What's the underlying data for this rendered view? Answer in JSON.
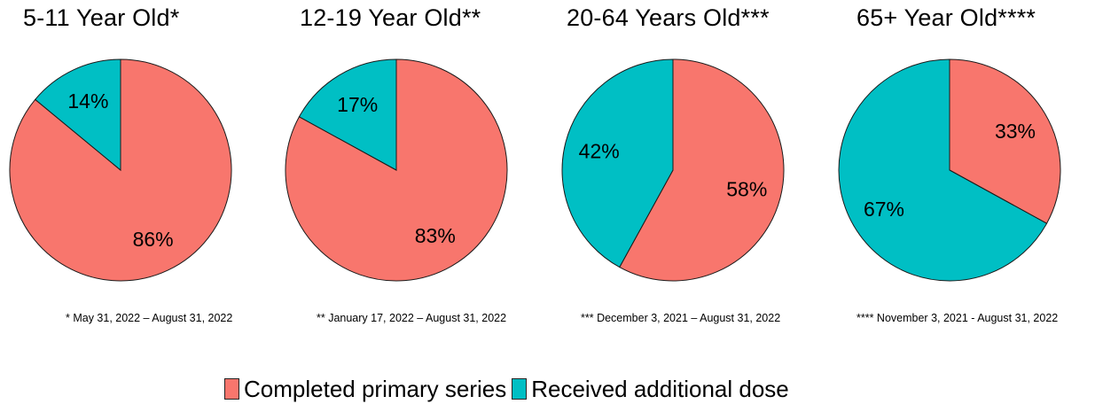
{
  "colors": {
    "completed": "#f8766d",
    "additional": "#00bfc4"
  },
  "chart_data": [
    {
      "type": "pie",
      "title": "5-11 Year Old*",
      "footnote": "* May 31, 2022 – August 31, 2022",
      "slices": [
        {
          "name": "Completed primary series",
          "value": 86,
          "label": "86%"
        },
        {
          "name": "Received additional dose",
          "value": 14,
          "label": "14%"
        }
      ]
    },
    {
      "type": "pie",
      "title": "12-19 Year Old**",
      "footnote": "** January 17, 2022 – August 31, 2022",
      "slices": [
        {
          "name": "Completed primary series",
          "value": 83,
          "label": "83%"
        },
        {
          "name": "Received additional dose",
          "value": 17,
          "label": "17%"
        }
      ]
    },
    {
      "type": "pie",
      "title": "20-64 Years Old***",
      "footnote": "*** December 3, 2021 – August 31, 2022",
      "slices": [
        {
          "name": "Completed primary series",
          "value": 58,
          "label": "58%"
        },
        {
          "name": "Received additional dose",
          "value": 42,
          "label": "42%"
        }
      ]
    },
    {
      "type": "pie",
      "title": "65+ Year Old****",
      "footnote": "**** November 3, 2021 - August 31, 2022",
      "slices": [
        {
          "name": "Completed primary series",
          "value": 33,
          "label": "33%"
        },
        {
          "name": "Received additional dose",
          "value": 67,
          "label": "67%"
        }
      ]
    }
  ],
  "legend": {
    "items": [
      {
        "label": "Completed primary series"
      },
      {
        "label": "Received additional dose"
      }
    ]
  }
}
